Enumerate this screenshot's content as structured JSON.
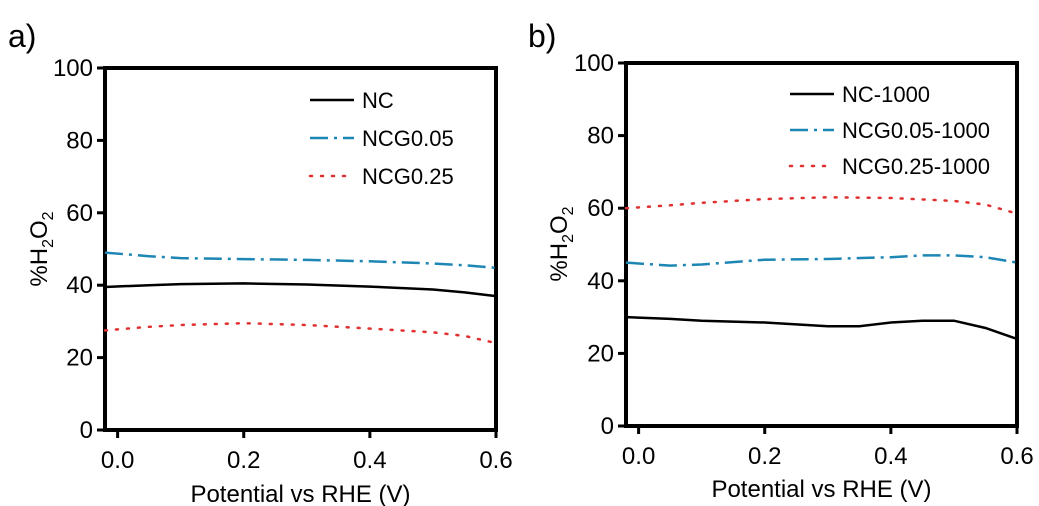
{
  "chart_data": [
    {
      "panel_label": "a)",
      "type": "line",
      "xlabel": "Potential vs RHE (V)",
      "ylabel": "%H2O2",
      "xlim": [
        -0.02,
        0.6
      ],
      "ylim": [
        0,
        100
      ],
      "xticks": [
        0.0,
        0.2,
        0.4,
        0.6
      ],
      "xtick_labels": [
        "0.0",
        "0.2",
        "0.4",
        "0.6"
      ],
      "yticks": [
        0,
        20,
        40,
        60,
        80,
        100
      ],
      "ytick_labels": [
        "0",
        "20",
        "40",
        "60",
        "80",
        "100"
      ],
      "grid": false,
      "legend_position": "top-right",
      "series": [
        {
          "name": "NC",
          "color": "#000000",
          "style": "solid",
          "x": [
            -0.02,
            0.05,
            0.1,
            0.2,
            0.3,
            0.4,
            0.5,
            0.55,
            0.6
          ],
          "y": [
            39.5,
            40,
            40.3,
            40.5,
            40.2,
            39.6,
            38.8,
            38,
            37
          ]
        },
        {
          "name": "NCG0.05",
          "color": "#1e86b5",
          "style": "dashdot",
          "x": [
            -0.02,
            0.05,
            0.1,
            0.2,
            0.3,
            0.4,
            0.5,
            0.55,
            0.6
          ],
          "y": [
            49,
            48,
            47.5,
            47.2,
            47,
            46.6,
            46,
            45.5,
            44.8
          ]
        },
        {
          "name": "NCG0.25",
          "color": "#e03030",
          "style": "dotted",
          "x": [
            -0.02,
            0.05,
            0.1,
            0.2,
            0.3,
            0.4,
            0.5,
            0.55,
            0.6
          ],
          "y": [
            27.5,
            28.5,
            29,
            29.5,
            29,
            28,
            27,
            26,
            24
          ]
        }
      ]
    },
    {
      "panel_label": "b)",
      "type": "line",
      "xlabel": "Potential vs RHE (V)",
      "ylabel": "%H2O2",
      "xlim": [
        -0.02,
        0.6
      ],
      "ylim": [
        0,
        100
      ],
      "xticks": [
        0.0,
        0.2,
        0.4,
        0.6
      ],
      "xtick_labels": [
        "0.0",
        "0.2",
        "0.4",
        "0.6"
      ],
      "yticks": [
        0,
        20,
        40,
        60,
        80,
        100
      ],
      "ytick_labels": [
        "0",
        "20",
        "40",
        "60",
        "80",
        "100"
      ],
      "grid": false,
      "legend_position": "top-right",
      "series": [
        {
          "name": "NC-1000",
          "color": "#000000",
          "style": "solid",
          "x": [
            -0.02,
            0.05,
            0.1,
            0.2,
            0.3,
            0.35,
            0.4,
            0.45,
            0.5,
            0.55,
            0.6
          ],
          "y": [
            30,
            29.5,
            29,
            28.5,
            27.5,
            27.5,
            28.5,
            29,
            29,
            27,
            24
          ]
        },
        {
          "name": "NCG0.05-1000",
          "color": "#1e86b5",
          "style": "dashdot",
          "x": [
            -0.02,
            0.05,
            0.1,
            0.2,
            0.3,
            0.4,
            0.45,
            0.5,
            0.55,
            0.6
          ],
          "y": [
            45,
            44.2,
            44.5,
            45.8,
            46,
            46.5,
            47,
            47,
            46.5,
            45
          ]
        },
        {
          "name": "NCG0.25-1000",
          "color": "#e03030",
          "style": "dotted",
          "x": [
            -0.02,
            0.05,
            0.1,
            0.2,
            0.3,
            0.4,
            0.5,
            0.55,
            0.6
          ],
          "y": [
            60,
            60.8,
            61.5,
            62.5,
            63,
            62.8,
            62,
            61,
            58.5
          ]
        }
      ]
    }
  ]
}
